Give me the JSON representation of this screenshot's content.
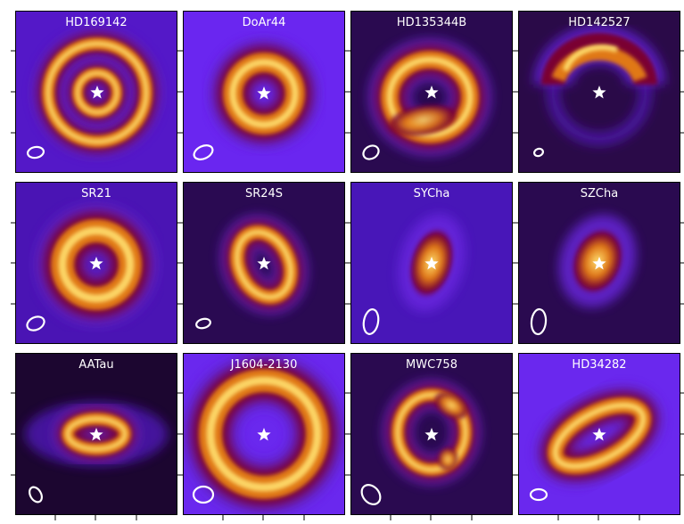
{
  "panels": [
    {
      "label": "HD169142",
      "morphology": "double-ring"
    },
    {
      "label": "DoAr44",
      "morphology": "ring"
    },
    {
      "label": "HD135344B",
      "morphology": "ring-with-asymmetry"
    },
    {
      "label": "HD142527",
      "morphology": "horseshoe"
    },
    {
      "label": "SR21",
      "morphology": "ring"
    },
    {
      "label": "SR24S",
      "morphology": "inclined-ring"
    },
    {
      "label": "SYCha",
      "morphology": "inclined-ring"
    },
    {
      "label": "SZCha",
      "morphology": "inclined-ring"
    },
    {
      "label": "AATau",
      "morphology": "inclined-ring"
    },
    {
      "label": "J1604-2130",
      "morphology": "wide-ring"
    },
    {
      "label": "MWC758",
      "morphology": "asymmetric-ring"
    },
    {
      "label": "HD34282",
      "morphology": "inclined-ring"
    }
  ],
  "colors": {
    "background_purple": "#5a1fd0",
    "ring_core": "#ffe070",
    "ring_mid": "#e07818",
    "ring_outer": "#7a0030",
    "star_and_beam": "#ffffff"
  },
  "icons": {
    "star": "star-icon",
    "beam": "beam-ellipse-icon"
  }
}
